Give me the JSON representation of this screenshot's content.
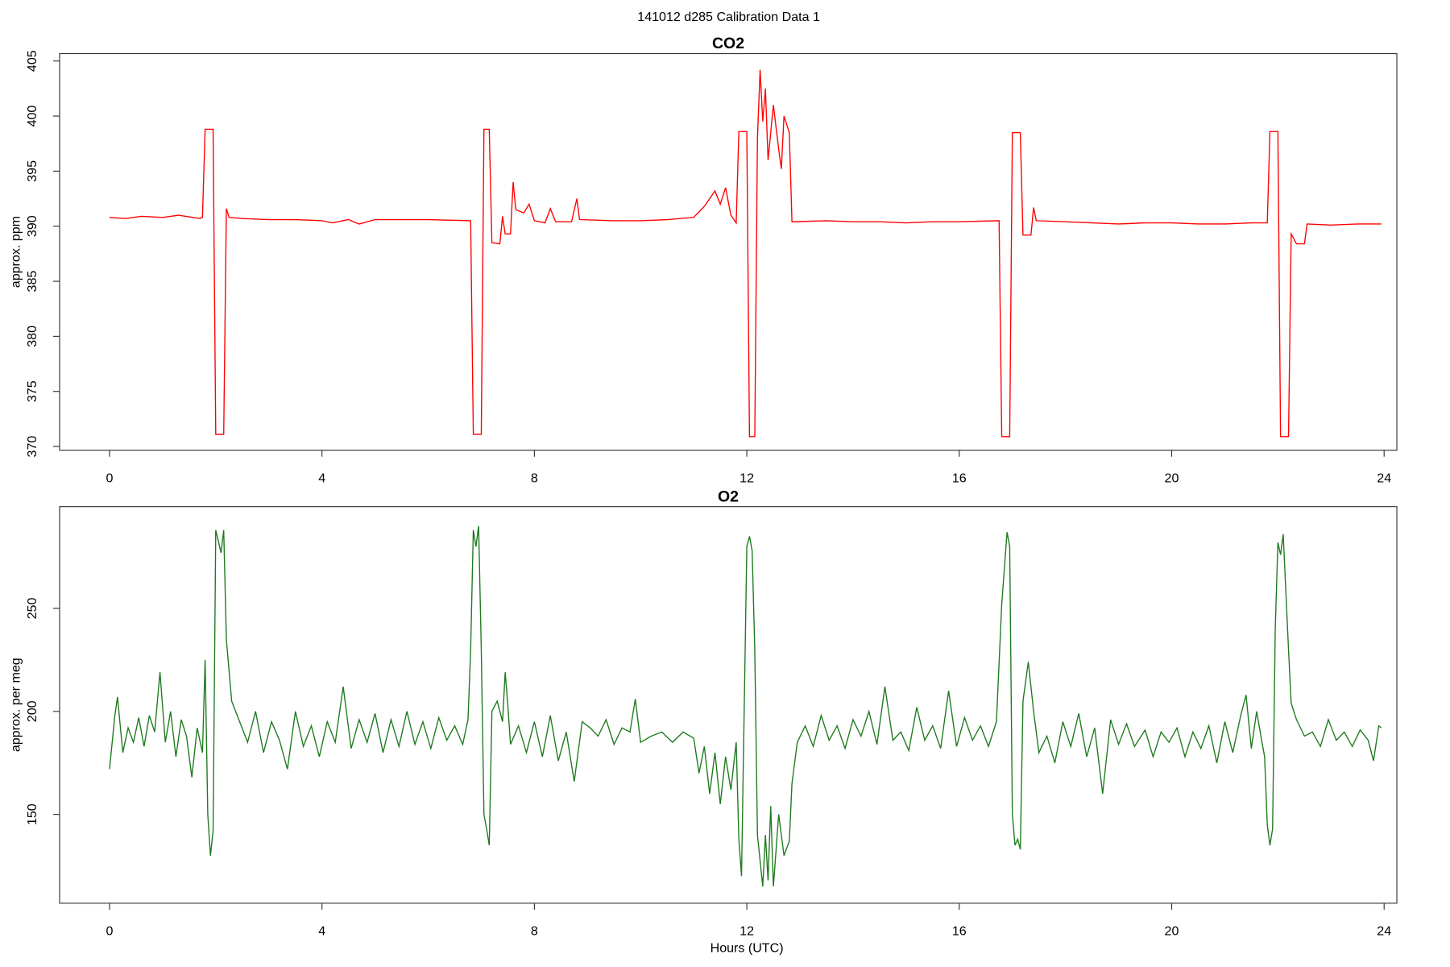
{
  "title": "141012   d285   Calibration Data 1",
  "chart_data": [
    {
      "type": "line",
      "title": "CO2",
      "y_label": "approx. ppm",
      "color": "#ff0000",
      "xlim": [
        -0.94,
        24.24
      ],
      "xticks": [
        0,
        4,
        8,
        12,
        16,
        20,
        24
      ],
      "ylim": [
        369.66,
        405.67
      ],
      "yticks": [
        370,
        375,
        380,
        385,
        390,
        395,
        400,
        405
      ],
      "x": [
        0,
        0.3,
        0.6,
        1.0,
        1.3,
        1.7,
        1.75,
        1.8,
        1.95,
        2.0,
        2.15,
        2.2,
        2.25,
        2.5,
        3.0,
        3.5,
        4.0,
        4.2,
        4.5,
        4.7,
        5.0,
        5.5,
        6.0,
        6.8,
        6.85,
        7.0,
        7.05,
        7.15,
        7.2,
        7.35,
        7.4,
        7.45,
        7.55,
        7.6,
        7.65,
        7.8,
        7.9,
        8.0,
        8.2,
        8.3,
        8.4,
        8.7,
        8.8,
        8.85,
        9.5,
        10.0,
        10.5,
        11.0,
        11.2,
        11.3,
        11.4,
        11.5,
        11.6,
        11.7,
        11.8,
        11.85,
        12.0,
        12.05,
        12.15,
        12.2,
        12.25,
        12.3,
        12.35,
        12.4,
        12.5,
        12.6,
        12.65,
        12.7,
        12.8,
        12.85,
        13.5,
        14.0,
        14.5,
        15.0,
        15.5,
        16.0,
        16.75,
        16.8,
        16.95,
        17.0,
        17.15,
        17.2,
        17.35,
        17.4,
        17.45,
        18.0,
        18.5,
        19.0,
        19.5,
        20.0,
        20.5,
        21.0,
        21.5,
        21.8,
        21.85,
        22.0,
        22.05,
        22.2,
        22.25,
        22.35,
        22.5,
        22.55,
        23.0,
        23.5,
        23.95
      ],
      "values": [
        390.8,
        390.7,
        390.9,
        390.8,
        391.0,
        390.7,
        390.8,
        398.8,
        398.8,
        371.1,
        371.1,
        391.6,
        390.8,
        390.7,
        390.6,
        390.6,
        390.5,
        390.3,
        390.6,
        390.2,
        390.6,
        390.6,
        390.6,
        390.5,
        371.1,
        371.1,
        398.8,
        398.8,
        388.5,
        388.4,
        390.9,
        389.3,
        389.3,
        394.0,
        391.5,
        391.2,
        392.0,
        390.5,
        390.3,
        391.6,
        390.4,
        390.4,
        392.5,
        390.6,
        390.5,
        390.5,
        390.6,
        390.8,
        391.8,
        392.5,
        393.2,
        392.0,
        393.5,
        391.0,
        390.3,
        398.6,
        398.6,
        370.9,
        370.9,
        398.0,
        404.2,
        399.5,
        402.5,
        396.0,
        401.0,
        397.0,
        395.2,
        400.0,
        398.5,
        390.4,
        390.5,
        390.4,
        390.4,
        390.3,
        390.4,
        390.4,
        390.5,
        370.9,
        370.9,
        398.5,
        398.5,
        389.2,
        389.2,
        391.7,
        390.5,
        390.4,
        390.3,
        390.2,
        390.3,
        390.3,
        390.2,
        390.2,
        390.3,
        390.3,
        398.6,
        398.6,
        370.9,
        370.9,
        389.3,
        388.4,
        388.4,
        390.2,
        390.1,
        390.2,
        390.2
      ]
    },
    {
      "type": "line",
      "title": "O2",
      "y_label": "approx. per meg",
      "x_label": "Hours (UTC)",
      "color": "#1e7a1e",
      "xlim": [
        -0.94,
        24.24
      ],
      "xticks": [
        0,
        4,
        8,
        12,
        16,
        20,
        24
      ],
      "ylim": [
        106.9,
        299.4
      ],
      "yticks": [
        150,
        200,
        250
      ],
      "x": [
        0,
        0.1,
        0.15,
        0.25,
        0.35,
        0.45,
        0.55,
        0.65,
        0.75,
        0.85,
        0.95,
        1.05,
        1.15,
        1.25,
        1.35,
        1.45,
        1.55,
        1.65,
        1.75,
        1.8,
        1.85,
        1.9,
        1.95,
        2.0,
        2.1,
        2.15,
        2.2,
        2.3,
        2.45,
        2.6,
        2.75,
        2.9,
        3.05,
        3.2,
        3.35,
        3.5,
        3.65,
        3.8,
        3.95,
        4.1,
        4.25,
        4.4,
        4.55,
        4.7,
        4.85,
        5.0,
        5.15,
        5.3,
        5.45,
        5.6,
        5.75,
        5.9,
        6.05,
        6.2,
        6.35,
        6.5,
        6.65,
        6.75,
        6.8,
        6.85,
        6.9,
        6.95,
        7.0,
        7.05,
        7.1,
        7.15,
        7.2,
        7.3,
        7.4,
        7.45,
        7.5,
        7.55,
        7.7,
        7.85,
        8.0,
        8.15,
        8.3,
        8.45,
        8.6,
        8.75,
        8.9,
        9.05,
        9.2,
        9.35,
        9.5,
        9.65,
        9.8,
        9.9,
        10.0,
        10.2,
        10.4,
        10.6,
        10.8,
        11.0,
        11.1,
        11.2,
        11.3,
        11.4,
        11.5,
        11.6,
        11.7,
        11.8,
        11.85,
        11.9,
        12.0,
        12.05,
        12.1,
        12.15,
        12.2,
        12.3,
        12.35,
        12.4,
        12.45,
        12.5,
        12.6,
        12.7,
        12.8,
        12.85,
        12.95,
        13.1,
        13.25,
        13.4,
        13.55,
        13.7,
        13.85,
        14.0,
        14.15,
        14.3,
        14.45,
        14.6,
        14.75,
        14.9,
        15.05,
        15.2,
        15.35,
        15.5,
        15.65,
        15.8,
        15.95,
        16.1,
        16.25,
        16.4,
        16.55,
        16.7,
        16.8,
        16.9,
        16.95,
        17.0,
        17.05,
        17.1,
        17.15,
        17.2,
        17.3,
        17.4,
        17.5,
        17.65,
        17.8,
        17.95,
        18.1,
        18.25,
        18.4,
        18.55,
        18.7,
        18.85,
        19.0,
        19.15,
        19.3,
        19.5,
        19.65,
        19.8,
        19.95,
        20.1,
        20.25,
        20.4,
        20.55,
        20.7,
        20.85,
        21.0,
        21.15,
        21.3,
        21.4,
        21.5,
        21.6,
        21.7,
        21.75,
        21.8,
        21.85,
        21.9,
        21.95,
        22.0,
        22.05,
        22.1,
        22.2,
        22.25,
        22.35,
        22.5,
        22.65,
        22.8,
        22.95,
        23.1,
        23.25,
        23.4,
        23.55,
        23.7,
        23.8,
        23.9,
        23.95
      ],
      "values": [
        172,
        198,
        207,
        180,
        192,
        185,
        197,
        183,
        198,
        190,
        219,
        185,
        200,
        178,
        196,
        188,
        168,
        192,
        180,
        225,
        150,
        130,
        142,
        288,
        277,
        288,
        235,
        205,
        195,
        185,
        200,
        180,
        195,
        186,
        172,
        200,
        183,
        193,
        178,
        195,
        185,
        212,
        182,
        196,
        185,
        199,
        180,
        196,
        183,
        200,
        184,
        195,
        182,
        197,
        186,
        193,
        184,
        196,
        230,
        288,
        280,
        290,
        230,
        150,
        143,
        135,
        200,
        205,
        195,
        219,
        203,
        184,
        193,
        180,
        195,
        178,
        198,
        176,
        190,
        166,
        195,
        192,
        188,
        196,
        184,
        192,
        190,
        206,
        185,
        188,
        190,
        185,
        190,
        187,
        170,
        183,
        160,
        180,
        155,
        178,
        162,
        185,
        138,
        120,
        280,
        285,
        278,
        230,
        140,
        115,
        140,
        118,
        154,
        115,
        150,
        130,
        137,
        165,
        185,
        193,
        183,
        198,
        186,
        193,
        182,
        196,
        188,
        200,
        184,
        212,
        186,
        190,
        181,
        202,
        186,
        193,
        182,
        210,
        183,
        197,
        186,
        193,
        183,
        195,
        252,
        287,
        280,
        150,
        135,
        138,
        133,
        205,
        224,
        200,
        180,
        188,
        175,
        195,
        183,
        199,
        178,
        192,
        160,
        196,
        184,
        194,
        183,
        191,
        178,
        190,
        185,
        192,
        178,
        190,
        182,
        193,
        175,
        195,
        180,
        198,
        208,
        182,
        200,
        185,
        178,
        145,
        135,
        143,
        240,
        282,
        276,
        286,
        230,
        204,
        196,
        188,
        190,
        183,
        196,
        186,
        190,
        183,
        191,
        186,
        176,
        193,
        192
      ]
    }
  ]
}
